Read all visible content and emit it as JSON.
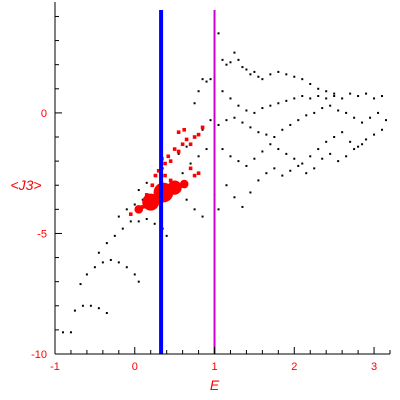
{
  "chart_data": {
    "type": "scatter",
    "title": "",
    "xlabel": "E",
    "ylabel": "<J3>",
    "xlim": [
      -1,
      3.2
    ],
    "ylim": [
      -10,
      4.6
    ],
    "x_ticks": [
      -1,
      0,
      1,
      2,
      3
    ],
    "y_ticks": [
      0,
      -5,
      -10
    ],
    "tick_color": "#ff0000",
    "grid": false,
    "vertical_lines": [
      {
        "x": 0.33,
        "color": "#0000ff"
      },
      {
        "x": 1.0,
        "color": "#cc00cc"
      }
    ],
    "series": [
      {
        "color": "#000000",
        "points": [
          [
            -0.9,
            -9.1
          ],
          [
            -0.8,
            -9.1
          ],
          [
            -0.75,
            -8.2
          ],
          [
            -0.65,
            -8.0
          ],
          [
            -0.55,
            -8.0
          ],
          [
            -0.45,
            -8.1
          ],
          [
            -0.35,
            -8.3
          ],
          [
            -0.68,
            -7.1
          ],
          [
            -0.6,
            -6.7
          ],
          [
            -0.5,
            -6.4
          ],
          [
            -0.4,
            -6.2
          ],
          [
            -0.3,
            -6.1
          ],
          [
            -0.2,
            -6.2
          ],
          [
            -0.1,
            -6.4
          ],
          [
            0.0,
            -6.7
          ],
          [
            0.05,
            -7.0
          ],
          [
            -0.45,
            -5.8
          ],
          [
            -0.35,
            -5.4
          ],
          [
            -0.25,
            -5.1
          ],
          [
            -0.15,
            -4.8
          ],
          [
            -0.05,
            -4.5
          ],
          [
            0.05,
            -4.5
          ],
          [
            0.15,
            -4.4
          ],
          [
            0.25,
            -4.6
          ],
          [
            0.35,
            -4.8
          ],
          [
            0.4,
            -5.1
          ],
          [
            -0.2,
            -4.3
          ],
          [
            -0.1,
            -4.0
          ],
          [
            0.0,
            -3.8
          ],
          [
            0.1,
            -3.6
          ],
          [
            0.2,
            -3.4
          ],
          [
            0.05,
            -3.2
          ],
          [
            0.15,
            -2.9
          ],
          [
            0.25,
            -2.6
          ],
          [
            0.35,
            -2.3
          ],
          [
            0.45,
            -2.0
          ],
          [
            0.55,
            -1.7
          ],
          [
            0.65,
            -1.4
          ],
          [
            0.75,
            -1.0
          ],
          [
            0.85,
            -0.7
          ],
          [
            0.95,
            -0.3
          ],
          [
            0.55,
            -3.2
          ],
          [
            0.65,
            -3.6
          ],
          [
            0.75,
            -4.0
          ],
          [
            0.85,
            -4.3
          ],
          [
            0.6,
            -2.5
          ],
          [
            0.7,
            -2.1
          ],
          [
            0.8,
            -1.8
          ],
          [
            0.9,
            -1.5
          ],
          [
            0.75,
            0.4
          ],
          [
            0.8,
            0.9
          ],
          [
            0.85,
            1.4
          ],
          [
            0.9,
            1.3
          ],
          [
            0.95,
            1.4
          ],
          [
            1.0,
            1.5
          ],
          [
            1.05,
            3.3
          ],
          [
            1.1,
            2.2
          ],
          [
            1.15,
            2.0
          ],
          [
            1.2,
            2.1
          ],
          [
            1.25,
            2.5
          ],
          [
            1.3,
            2.2
          ],
          [
            1.35,
            1.9
          ],
          [
            1.4,
            1.8
          ],
          [
            1.45,
            1.6
          ],
          [
            1.5,
            1.7
          ],
          [
            1.55,
            1.5
          ],
          [
            1.6,
            1.4
          ],
          [
            1.7,
            1.6
          ],
          [
            1.8,
            1.7
          ],
          [
            1.9,
            1.6
          ],
          [
            2.0,
            1.5
          ],
          [
            2.1,
            1.4
          ],
          [
            2.2,
            1.2
          ],
          [
            2.3,
            1.0
          ],
          [
            2.4,
            0.9
          ],
          [
            2.5,
            0.8
          ],
          [
            1.1,
            0.9
          ],
          [
            1.2,
            0.6
          ],
          [
            1.3,
            0.3
          ],
          [
            1.4,
            0.1
          ],
          [
            1.5,
            0.0
          ],
          [
            1.6,
            0.2
          ],
          [
            1.7,
            0.3
          ],
          [
            1.8,
            0.4
          ],
          [
            1.9,
            0.5
          ],
          [
            2.0,
            0.6
          ],
          [
            2.1,
            0.7
          ],
          [
            2.2,
            0.6
          ],
          [
            2.3,
            0.7
          ],
          [
            2.4,
            0.6
          ],
          [
            2.5,
            0.7
          ],
          [
            2.6,
            0.6
          ],
          [
            2.7,
            0.8
          ],
          [
            2.8,
            0.7
          ],
          [
            2.9,
            0.8
          ],
          [
            3.0,
            0.6
          ],
          [
            3.1,
            0.7
          ],
          [
            1.05,
            -0.5
          ],
          [
            1.15,
            -0.3
          ],
          [
            1.25,
            -0.2
          ],
          [
            1.35,
            -0.4
          ],
          [
            1.45,
            -0.6
          ],
          [
            1.55,
            -0.8
          ],
          [
            1.65,
            -0.9
          ],
          [
            1.75,
            -1.0
          ],
          [
            1.85,
            -0.7
          ],
          [
            1.95,
            -0.5
          ],
          [
            2.05,
            -0.3
          ],
          [
            2.15,
            -0.1
          ],
          [
            2.25,
            0.0
          ],
          [
            2.35,
            0.2
          ],
          [
            2.45,
            0.3
          ],
          [
            2.55,
            0.1
          ],
          [
            2.65,
            0.0
          ],
          [
            2.75,
            -0.2
          ],
          [
            2.85,
            -0.4
          ],
          [
            2.95,
            -0.2
          ],
          [
            3.05,
            0.0
          ],
          [
            3.15,
            -0.3
          ],
          [
            1.1,
            -1.5
          ],
          [
            1.2,
            -1.8
          ],
          [
            1.3,
            -2.0
          ],
          [
            1.4,
            -2.2
          ],
          [
            1.5,
            -1.9
          ],
          [
            1.6,
            -1.6
          ],
          [
            1.7,
            -1.3
          ],
          [
            1.8,
            -1.5
          ],
          [
            1.9,
            -1.7
          ],
          [
            2.0,
            -1.9
          ],
          [
            2.1,
            -2.1
          ],
          [
            2.2,
            -1.8
          ],
          [
            2.3,
            -1.5
          ],
          [
            2.4,
            -1.2
          ],
          [
            2.5,
            -1.0
          ],
          [
            2.6,
            -0.8
          ],
          [
            2.7,
            -1.2
          ],
          [
            2.8,
            -1.4
          ],
          [
            2.9,
            -1.1
          ],
          [
            3.0,
            -0.9
          ],
          [
            3.1,
            -0.7
          ],
          [
            1.15,
            -3.0
          ],
          [
            1.25,
            -3.5
          ],
          [
            1.35,
            -3.9
          ],
          [
            1.45,
            -3.3
          ],
          [
            1.55,
            -2.8
          ],
          [
            1.65,
            -2.5
          ],
          [
            1.75,
            -2.3
          ],
          [
            1.85,
            -2.6
          ],
          [
            1.95,
            -2.4
          ],
          [
            2.05,
            -2.2
          ],
          [
            2.15,
            -2.5
          ],
          [
            2.25,
            -2.3
          ],
          [
            2.35,
            -1.9
          ],
          [
            2.45,
            -1.7
          ],
          [
            2.55,
            -2.0
          ],
          [
            2.65,
            -1.8
          ],
          [
            2.75,
            -1.5
          ],
          [
            2.85,
            -1.3
          ],
          [
            1.05,
            -4.0
          ],
          [
            1.0,
            -3.4
          ]
        ]
      },
      {
        "color": "#ff0000",
        "points": [
          [
            -0.05,
            -4.2,
            1
          ],
          [
            0.05,
            -4.0,
            2
          ],
          [
            0.1,
            -3.9,
            1
          ],
          [
            0.2,
            -3.7,
            5
          ],
          [
            0.3,
            -3.5,
            3
          ],
          [
            0.36,
            -3.3,
            6
          ],
          [
            0.5,
            -3.1,
            4
          ],
          [
            0.62,
            -2.95,
            2
          ],
          [
            0.75,
            -2.6,
            1
          ],
          [
            0.15,
            -3.4,
            1
          ],
          [
            0.22,
            -3.0,
            1
          ],
          [
            0.26,
            -2.6,
            1
          ],
          [
            0.3,
            -2.4,
            1
          ],
          [
            0.38,
            -2.1,
            1
          ],
          [
            0.45,
            -2.0,
            1
          ],
          [
            0.5,
            -1.5,
            1
          ],
          [
            0.55,
            -1.6,
            1
          ],
          [
            0.6,
            -1.3,
            1
          ],
          [
            0.65,
            -1.1,
            1
          ],
          [
            0.7,
            -1.3,
            1
          ],
          [
            0.75,
            -1.0,
            1
          ],
          [
            0.8,
            -0.9,
            1
          ],
          [
            0.85,
            -0.6,
            1
          ],
          [
            0.55,
            -0.8,
            1
          ],
          [
            0.62,
            -0.7,
            1
          ],
          [
            0.38,
            -2.6,
            1
          ],
          [
            0.45,
            -2.8,
            1
          ],
          [
            0.7,
            -2.3,
            1
          ],
          [
            0.8,
            -2.5,
            1
          ],
          [
            0.42,
            -1.8,
            1
          ],
          [
            0.34,
            -1.9,
            1
          ]
        ]
      }
    ]
  }
}
